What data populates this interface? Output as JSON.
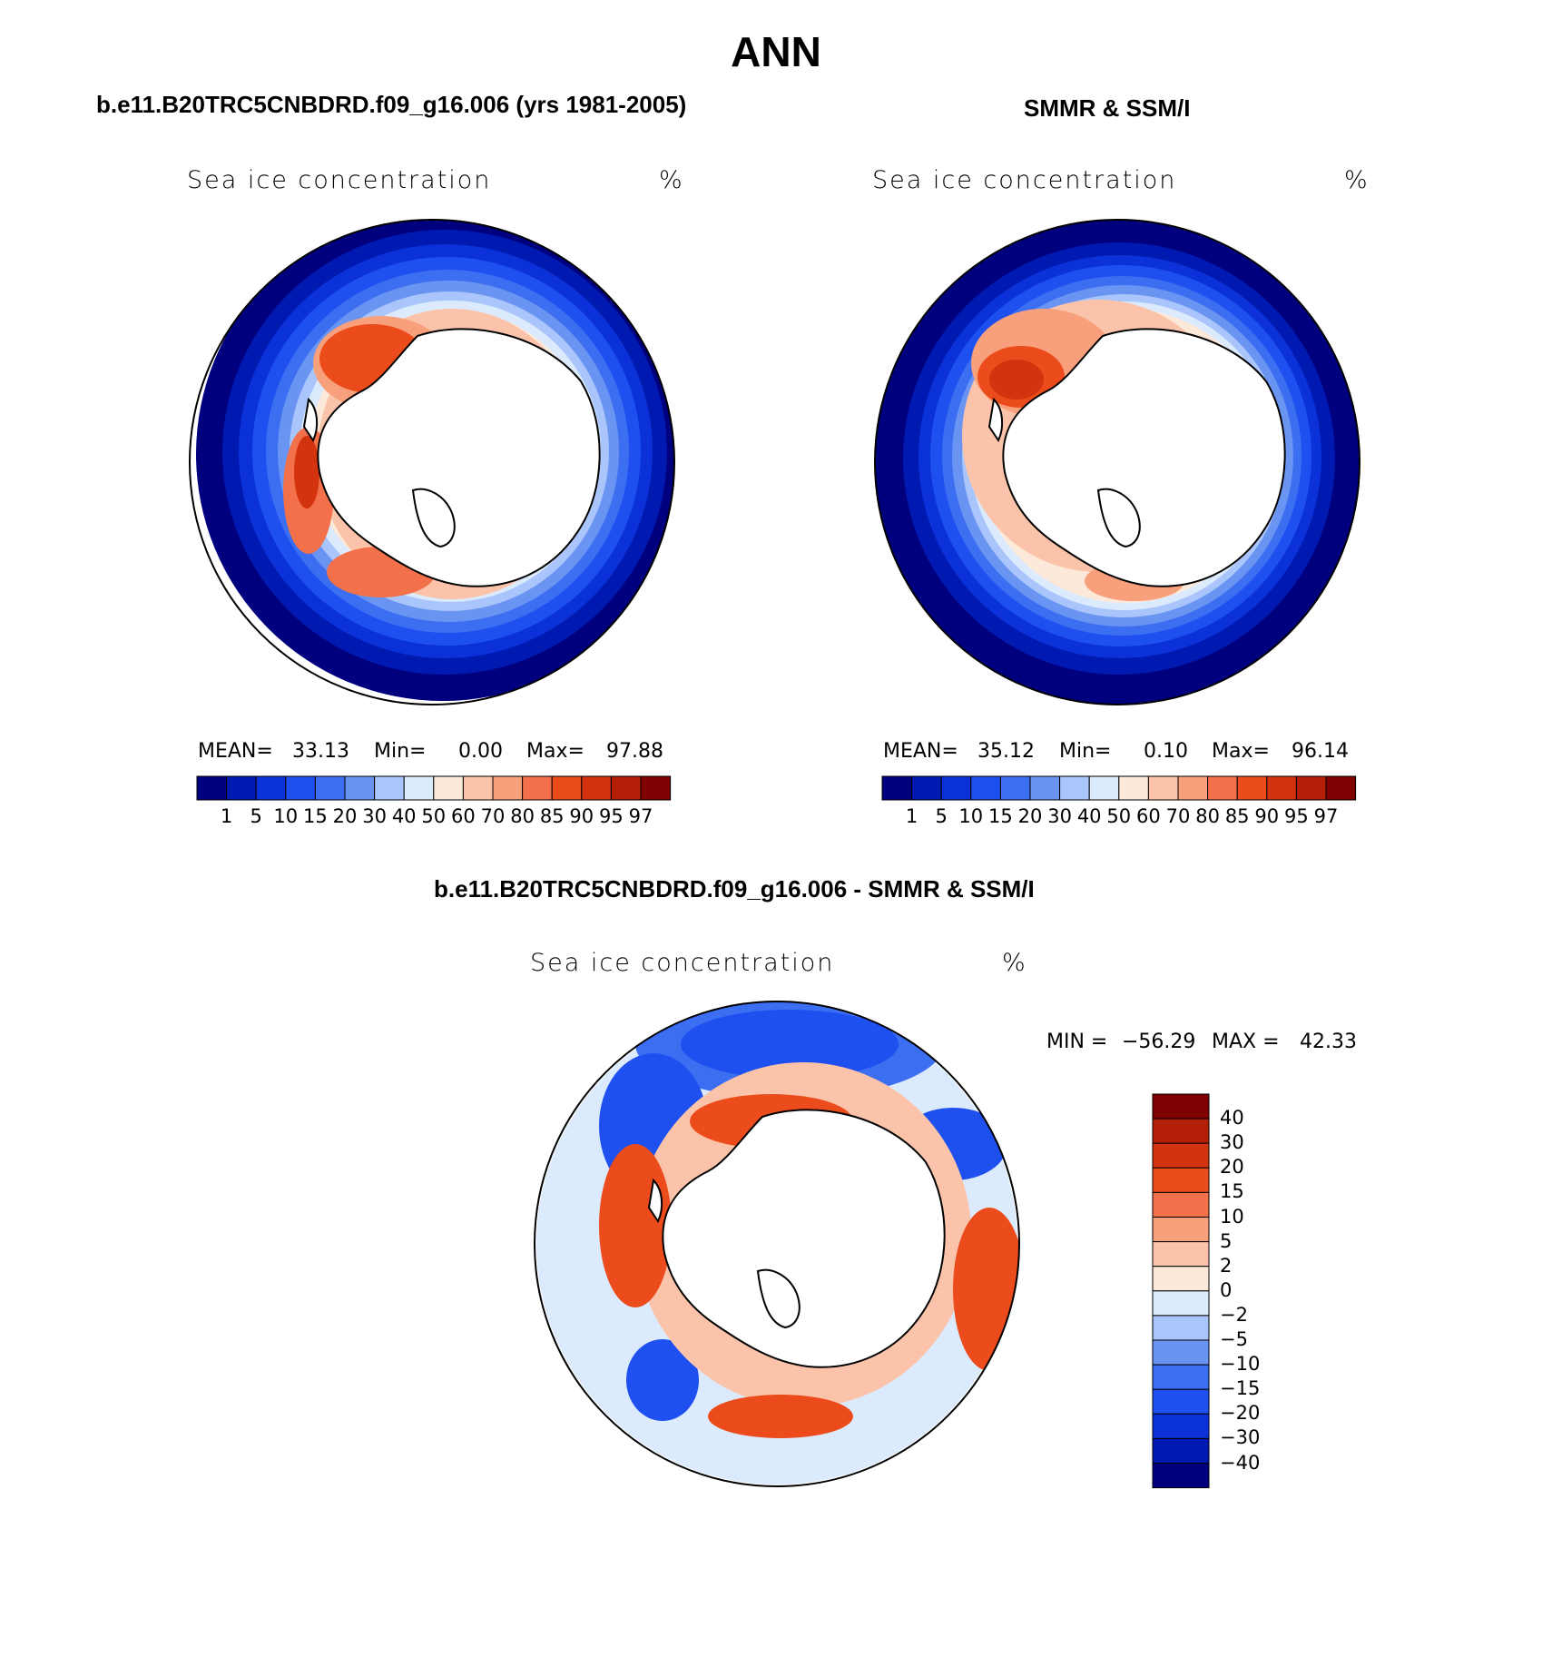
{
  "figure": {
    "season": "ANN",
    "panels": [
      {
        "id": "model",
        "title": "b.e11.B20TRC5CNBDRD.f09_g16.006 (yrs 1981-2005)",
        "variable": "Sea ice concentration",
        "units": "%",
        "stats": {
          "mean_label": "MEAN=",
          "mean": "33.13",
          "min_label": "Min=",
          "min": "0.00",
          "max_label": "Max=",
          "max": "97.88"
        }
      },
      {
        "id": "obs",
        "title": "SMMR & SSM/I",
        "variable": "Sea ice concentration",
        "units": "%",
        "stats": {
          "mean_label": "MEAN=",
          "mean": "35.12",
          "min_label": "Min=",
          "min": "0.10",
          "max_label": "Max=",
          "max": "96.14"
        }
      },
      {
        "id": "diff",
        "title": "b.e11.B20TRC5CNBDRD.f09_g16.006 - SMMR & SSM/I",
        "variable": "Sea ice concentration",
        "units": "%",
        "minmax": {
          "min_label": "MIN =",
          "min": "−56.29",
          "max_label": "MAX =",
          "max": "42.33"
        }
      }
    ]
  },
  "colorbar_abs": {
    "labels": [
      "1",
      "5",
      "10",
      "15",
      "20",
      "30",
      "40",
      "50",
      "60",
      "70",
      "80",
      "85",
      "90",
      "95",
      "97"
    ],
    "colors": [
      "#00007f",
      "#0019b0",
      "#0a32d8",
      "#1e50f0",
      "#3c6ef2",
      "#6a94f2",
      "#a9c5fb",
      "#dceafd",
      "#fde9d9",
      "#fbc4aa",
      "#f8a07c",
      "#f3714a",
      "#ec4c1c",
      "#d43310",
      "#b41f08",
      "#7f0000"
    ]
  },
  "colorbar_diff": {
    "labels": [
      "40",
      "30",
      "20",
      "15",
      "10",
      "5",
      "2",
      "0",
      "−2",
      "−5",
      "−10",
      "−15",
      "−20",
      "−30",
      "−40"
    ],
    "colors": [
      "#7f0000",
      "#b41f08",
      "#d43310",
      "#ec4c1c",
      "#f3714a",
      "#f8a07c",
      "#fbc4aa",
      "#fde9d9",
      "#dceafd",
      "#a9c5fb",
      "#6a94f2",
      "#3c6ef2",
      "#1e50f0",
      "#0a32d8",
      "#0019b0",
      "#00007f"
    ]
  }
}
